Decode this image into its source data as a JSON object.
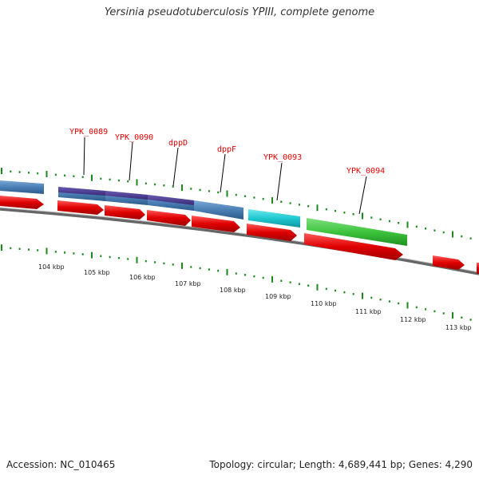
{
  "title": "Yersinia pseudotuberculosis YPIII, complete genome",
  "footer": {
    "accession": "Accession: NC_010465",
    "summary": "Topology: circular; Length: 4,689,441 bp; Genes: 4,290"
  },
  "genes": [
    {
      "name": "YPK_0089"
    },
    {
      "name": "YPK_0090"
    },
    {
      "name": "dppD"
    },
    {
      "name": "dppF"
    },
    {
      "name": "YPK_0093"
    },
    {
      "name": "YPK_0094"
    }
  ],
  "kbp_labels": [
    "104 kbp",
    "105 kbp",
    "106 kbp",
    "107 kbp",
    "108 kbp",
    "109 kbp",
    "110 kbp",
    "111 kbp",
    "112 kbp",
    "113 kbp"
  ],
  "colors": {
    "gene_label": "#e60000",
    "cds_red": "#e00000",
    "steel_blue": "#4a7fb5",
    "dark_purple": "#4a3a8c",
    "cyan": "#1fc8d0",
    "green": "#3ec43e",
    "backbone": "#777777",
    "tick_green": "#1a8a1a"
  }
}
